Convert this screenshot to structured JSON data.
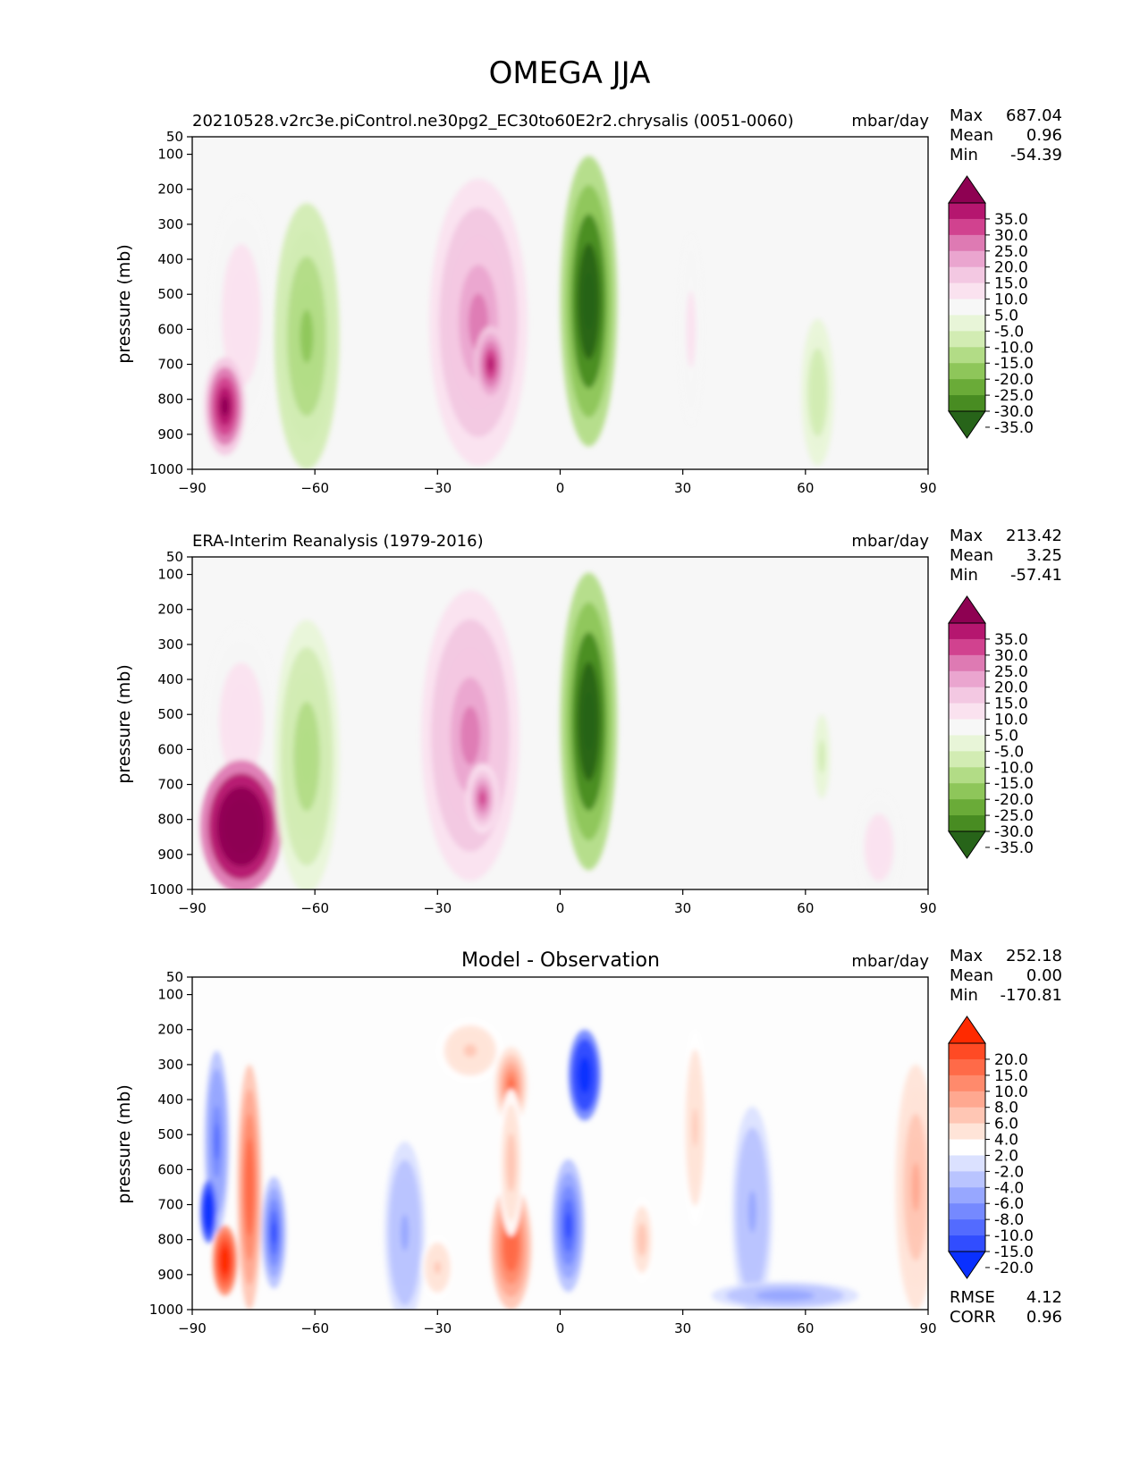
{
  "figure": {
    "title": "OMEGA JJA"
  },
  "chart_data": [
    {
      "type": "heatmap",
      "id": "model",
      "title_left": "20210528.v2rc3e.piControl.ne30pg2_EC30to60E2r2.chrysalis (0051-0060)",
      "title_center": "",
      "units": "mbar/day",
      "xlabel": "",
      "ylabel": "pressure (mb)",
      "xlim": [
        -90,
        90
      ],
      "ylim": [
        1000,
        50
      ],
      "xticks": [
        "−90",
        "−60",
        "−30",
        "0",
        "30",
        "60",
        "90"
      ],
      "yticks": [
        "50",
        "100",
        "200",
        "300",
        "400",
        "500",
        "600",
        "700",
        "800",
        "900",
        "1000"
      ],
      "stats": [
        {
          "label": "Max",
          "value": "687.04"
        },
        {
          "label": "Mean",
          "value": "0.96"
        },
        {
          "label": "Min",
          "value": "-54.39"
        }
      ],
      "colorbar": {
        "labels": [
          "35.0",
          "30.0",
          "25.0",
          "20.0",
          "15.0",
          "10.0",
          "5.0",
          "-5.0",
          "-10.0",
          "-15.0",
          "-20.0",
          "-25.0",
          "-30.0",
          "-35.0"
        ],
        "colors": [
          "#8e0152",
          "#b5166f",
          "#d1428f",
          "#de7ab3",
          "#eaa5cf",
          "#f3c8e2",
          "#fae2ef",
          "#f7f7f7",
          "#e8f5d8",
          "#d2ecb3",
          "#b2dc86",
          "#8ec65a",
          "#6aab38",
          "#488c22",
          "#276419"
        ]
      },
      "features": [
        {
          "kind": "pos",
          "lat": -78,
          "p": 560,
          "w": 8,
          "h": 680,
          "value": 8
        },
        {
          "kind": "pos",
          "lat": -82,
          "p": 820,
          "w": 5,
          "h": 280,
          "value": 40
        },
        {
          "kind": "neg",
          "lat": -62,
          "p": 620,
          "w": 8,
          "h": 760,
          "value": -15
        },
        {
          "kind": "pos",
          "lat": -20,
          "p": 580,
          "w": 12,
          "h": 820,
          "value": 22
        },
        {
          "kind": "pos",
          "lat": -17,
          "p": 700,
          "w": 4,
          "h": 220,
          "value": 30
        },
        {
          "kind": "neg",
          "lat": 7,
          "p": 520,
          "w": 7,
          "h": 830,
          "value": -38
        },
        {
          "kind": "pos",
          "lat": 32,
          "p": 600,
          "w": 3,
          "h": 550,
          "value": 6
        },
        {
          "kind": "neg",
          "lat": 63,
          "p": 780,
          "w": 4,
          "h": 420,
          "value": -8
        }
      ]
    },
    {
      "type": "heatmap",
      "id": "obs",
      "title_left": "ERA-Interim Reanalysis (1979-2016)",
      "title_center": "",
      "units": "mbar/day",
      "xlabel": "",
      "ylabel": "pressure (mb)",
      "xlim": [
        -90,
        90
      ],
      "ylim": [
        1000,
        50
      ],
      "xticks": [
        "−90",
        "−60",
        "−30",
        "0",
        "30",
        "60",
        "90"
      ],
      "yticks": [
        "50",
        "100",
        "200",
        "300",
        "400",
        "500",
        "600",
        "700",
        "800",
        "900",
        "1000"
      ],
      "stats": [
        {
          "label": "Max",
          "value": "213.42"
        },
        {
          "label": "Mean",
          "value": "3.25"
        },
        {
          "label": "Min",
          "value": "-57.41"
        }
      ],
      "colorbar": {
        "labels": [
          "35.0",
          "30.0",
          "25.0",
          "20.0",
          "15.0",
          "10.0",
          "5.0",
          "-5.0",
          "-10.0",
          "-15.0",
          "-20.0",
          "-25.0",
          "-30.0",
          "-35.0"
        ],
        "colors": [
          "#8e0152",
          "#b5166f",
          "#d1428f",
          "#de7ab3",
          "#eaa5cf",
          "#f3c8e2",
          "#fae2ef",
          "#f7f7f7",
          "#e8f5d8",
          "#d2ecb3",
          "#b2dc86",
          "#8ec65a",
          "#6aab38",
          "#488c22",
          "#276419"
        ]
      },
      "features": [
        {
          "kind": "pos",
          "lat": -78,
          "p": 520,
          "w": 9,
          "h": 560,
          "value": 8
        },
        {
          "kind": "pos",
          "lat": -78,
          "p": 820,
          "w": 10,
          "h": 380,
          "value": 60
        },
        {
          "kind": "neg",
          "lat": -62,
          "p": 620,
          "w": 8,
          "h": 780,
          "value": -14
        },
        {
          "kind": "pos",
          "lat": -22,
          "p": 560,
          "w": 12,
          "h": 830,
          "value": 22
        },
        {
          "kind": "pos",
          "lat": -19,
          "p": 740,
          "w": 4,
          "h": 200,
          "value": 28
        },
        {
          "kind": "neg",
          "lat": 7,
          "p": 520,
          "w": 7,
          "h": 850,
          "value": -38
        },
        {
          "kind": "pos",
          "lat": 78,
          "p": 880,
          "w": 6,
          "h": 320,
          "value": 8
        },
        {
          "kind": "neg",
          "lat": 64,
          "p": 620,
          "w": 2,
          "h": 240,
          "value": -6
        }
      ]
    },
    {
      "type": "heatmap",
      "id": "diff",
      "title_left": "",
      "title_center": "Model - Observation",
      "units": "mbar/day",
      "xlabel": "",
      "ylabel": "pressure (mb)",
      "xlim": [
        -90,
        90
      ],
      "ylim": [
        1000,
        50
      ],
      "xticks": [
        "−90",
        "−60",
        "−30",
        "0",
        "30",
        "60",
        "90"
      ],
      "yticks": [
        "50",
        "100",
        "200",
        "300",
        "400",
        "500",
        "600",
        "700",
        "800",
        "900",
        "1000"
      ],
      "stats": [
        {
          "label": "Max",
          "value": "252.18"
        },
        {
          "label": "Mean",
          "value": "0.00"
        },
        {
          "label": "Min",
          "value": "-170.81"
        }
      ],
      "extra_stats": [
        {
          "label": "RMSE",
          "value": "4.12"
        },
        {
          "label": "CORR",
          "value": "0.96"
        }
      ],
      "colorbar": {
        "labels": [
          "20.0",
          "15.0",
          "10.0",
          "8.0",
          "6.0",
          "4.0",
          "2.0",
          "-2.0",
          "-4.0",
          "-6.0",
          "-8.0",
          "-10.0",
          "-15.0",
          "-20.0"
        ],
        "colors": [
          "#ff2a00",
          "#ff4a24",
          "#ff6a48",
          "#ff8a6c",
          "#ffa890",
          "#ffc6b4",
          "#ffe4d8",
          "#ffffff",
          "#dbe1ff",
          "#b9c4ff",
          "#97a7ff",
          "#7589ff",
          "#536bff",
          "#314dff",
          "#0a30ff"
        ]
      },
      "features": [
        {
          "kind": "neg",
          "lat": -84,
          "p": 520,
          "w": 3,
          "h": 520,
          "value": -8
        },
        {
          "kind": "pos",
          "lat": -76,
          "p": 650,
          "w": 3,
          "h": 700,
          "value": 12
        },
        {
          "kind": "neg",
          "lat": -70,
          "p": 780,
          "w": 3,
          "h": 320,
          "value": -10
        },
        {
          "kind": "pos",
          "lat": -82,
          "p": 860,
          "w": 3,
          "h": 200,
          "value": 25
        },
        {
          "kind": "neg",
          "lat": -86,
          "p": 720,
          "w": 2,
          "h": 180,
          "value": -25
        },
        {
          "kind": "neg",
          "lat": -38,
          "p": 780,
          "w": 5,
          "h": 520,
          "value": -4
        },
        {
          "kind": "pos",
          "lat": -22,
          "p": 260,
          "w": 8,
          "h": 180,
          "value": 4
        },
        {
          "kind": "pos",
          "lat": -12,
          "p": 360,
          "w": 4,
          "h": 220,
          "value": 10
        },
        {
          "kind": "pos",
          "lat": -12,
          "p": 820,
          "w": 5,
          "h": 360,
          "value": 12
        },
        {
          "kind": "pos",
          "lat": -12,
          "p": 580,
          "w": 3,
          "h": 420,
          "value": 5
        },
        {
          "kind": "neg",
          "lat": 6,
          "p": 330,
          "w": 4,
          "h": 260,
          "value": -20
        },
        {
          "kind": "neg",
          "lat": 2,
          "p": 760,
          "w": 4,
          "h": 380,
          "value": -10
        },
        {
          "kind": "pos",
          "lat": 20,
          "p": 800,
          "w": 3,
          "h": 240,
          "value": 5
        },
        {
          "kind": "pos",
          "lat": 33,
          "p": 480,
          "w": 3,
          "h": 560,
          "value": 4
        },
        {
          "kind": "neg",
          "lat": 47,
          "p": 720,
          "w": 5,
          "h": 600,
          "value": -4
        },
        {
          "kind": "neg",
          "lat": 55,
          "p": 960,
          "w": 18,
          "h": 80,
          "value": -5
        },
        {
          "kind": "pos",
          "lat": 87,
          "p": 650,
          "w": 5,
          "h": 700,
          "value": 6
        },
        {
          "kind": "pos",
          "lat": -30,
          "p": 880,
          "w": 4,
          "h": 180,
          "value": 4
        }
      ]
    }
  ]
}
